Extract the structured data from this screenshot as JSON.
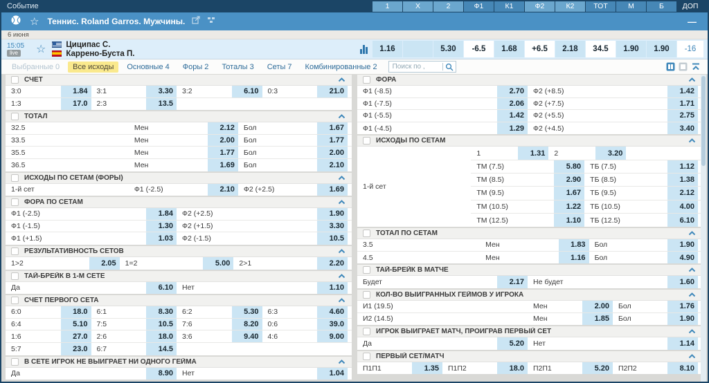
{
  "top_bar": {
    "title": "Событие",
    "columns": [
      {
        "label": "1",
        "style": "light"
      },
      {
        "label": "X",
        "style": "light"
      },
      {
        "label": "2",
        "style": "light"
      },
      {
        "label": "Ф1",
        "style": "dark"
      },
      {
        "label": "К1",
        "style": "dark"
      },
      {
        "label": "Ф2",
        "style": "light"
      },
      {
        "label": "К2",
        "style": "light"
      },
      {
        "label": "ТОТ",
        "style": "dark"
      },
      {
        "label": "М",
        "style": "dark"
      },
      {
        "label": "Б",
        "style": "dark"
      },
      {
        "label": "ДОП",
        "style": "plain"
      }
    ]
  },
  "sport_row": {
    "title": "Теннис. Roland Garros. Мужчины.",
    "minimize": "—"
  },
  "date_row": {
    "date": "6 июня"
  },
  "match": {
    "time": "15:05",
    "live": "live",
    "player1": "Циципас С.",
    "player2": "Каррено-Буста П.",
    "flag1": "greece",
    "flag2": "spain",
    "odds": [
      {
        "v": "1.16",
        "style": "blue"
      },
      {
        "v": "",
        "style": "blue"
      },
      {
        "v": "5.30",
        "style": "blue"
      },
      {
        "v": "-6.5",
        "style": "white"
      },
      {
        "v": "1.68",
        "style": "blue"
      },
      {
        "v": "+6.5",
        "style": "white"
      },
      {
        "v": "2.18",
        "style": "blue"
      },
      {
        "v": "34.5",
        "style": "white"
      },
      {
        "v": "1.90",
        "style": "blue"
      },
      {
        "v": "1.90",
        "style": "blue"
      },
      {
        "v": "-16",
        "style": "link"
      }
    ]
  },
  "filter_bar": {
    "tabs": [
      {
        "label": "Выбранные 0",
        "state": "disabled"
      },
      {
        "label": "Все исходы",
        "state": "active"
      },
      {
        "label": "Основные 4",
        "state": "normal"
      },
      {
        "label": "Форы 2",
        "state": "normal"
      },
      {
        "label": "Тоталы 3",
        "state": "normal"
      },
      {
        "label": "Сеты 7",
        "state": "normal"
      },
      {
        "label": "Комбинированные 2",
        "state": "normal"
      }
    ],
    "search_placeholder": "Поиск по ,"
  },
  "columns": {
    "left": [
      {
        "title": "СЧЕТ",
        "type": "pairs",
        "per_row": 4,
        "rows": [
          [
            [
              "3:0",
              "1.84"
            ],
            [
              "3:1",
              "3.30"
            ],
            [
              "3:2",
              "6.10"
            ],
            [
              "0:3",
              "21.0"
            ]
          ],
          [
            [
              "1:3",
              "17.0"
            ],
            [
              "2:3",
              "13.5"
            ],
            null,
            null
          ]
        ]
      },
      {
        "title": "ТОТАЛ",
        "type": "param",
        "label_w": "36%",
        "rows": [
          {
            "label": "32.5",
            "pairs": [
              [
                "Мен",
                "2.12"
              ],
              [
                "Бол",
                "1.67"
              ]
            ]
          },
          {
            "label": "33.5",
            "pairs": [
              [
                "Мен",
                "2.00"
              ],
              [
                "Бол",
                "1.77"
              ]
            ]
          },
          {
            "label": "35.5",
            "pairs": [
              [
                "Мен",
                "1.77"
              ],
              [
                "Бол",
                "2.00"
              ]
            ]
          },
          {
            "label": "36.5",
            "pairs": [
              [
                "Мен",
                "1.69"
              ],
              [
                "Бол",
                "2.10"
              ]
            ]
          }
        ]
      },
      {
        "title": "ИСХОДЫ ПО СЕТАМ (ФОРЫ)",
        "type": "param",
        "label_w": "36%",
        "rows": [
          {
            "label": "1-й сет",
            "pairs": [
              [
                "Ф1 (-2.5)",
                "2.10"
              ],
              [
                "Ф2 (+2.5)",
                "1.69"
              ]
            ]
          }
        ]
      },
      {
        "title": "ФОРА ПО СЕТАМ",
        "type": "pairs",
        "per_row": 2,
        "rows": [
          [
            [
              "Ф1 (-2.5)",
              "1.84"
            ],
            [
              "Ф2 (+2.5)",
              "1.90"
            ]
          ],
          [
            [
              "Ф1 (-1.5)",
              "1.30"
            ],
            [
              "Ф2 (+1.5)",
              "3.30"
            ]
          ],
          [
            [
              "Ф1 (+1.5)",
              "1.03"
            ],
            [
              "Ф2 (-1.5)",
              "10.5"
            ]
          ]
        ]
      },
      {
        "title": "РЕЗУЛЬТАТИВНОСТЬ СЕТОВ",
        "type": "pairs",
        "per_row": 3,
        "rows": [
          [
            [
              "1>2",
              "2.05"
            ],
            [
              "1=2",
              "5.00"
            ],
            [
              "2>1",
              "2.20"
            ]
          ]
        ]
      },
      {
        "title": "ТАЙ-БРЕЙК В 1-М СЕТЕ",
        "type": "pairs",
        "per_row": 2,
        "rows": [
          [
            [
              "Да",
              "6.10"
            ],
            [
              "Нет",
              "1.10"
            ]
          ]
        ]
      },
      {
        "title": "СЧЕТ ПЕРВОГО СЕТА",
        "type": "pairs",
        "per_row": 4,
        "rows": [
          [
            [
              "6:0",
              "18.0"
            ],
            [
              "6:1",
              "8.30"
            ],
            [
              "6:2",
              "5.30"
            ],
            [
              "6:3",
              "4.60"
            ]
          ],
          [
            [
              "6:4",
              "5.10"
            ],
            [
              "7:5",
              "10.5"
            ],
            [
              "7:6",
              "8.20"
            ],
            [
              "0:6",
              "39.0"
            ]
          ],
          [
            [
              "1:6",
              "27.0"
            ],
            [
              "2:6",
              "18.0"
            ],
            [
              "3:6",
              "9.40"
            ],
            [
              "4:6",
              "9.00"
            ]
          ],
          [
            [
              "5:7",
              "23.0"
            ],
            [
              "6:7",
              "14.5"
            ],
            null,
            null
          ]
        ]
      },
      {
        "title": "В СЕТЕ ИГРОК НЕ ВЫИГРАЕТ НИ ОДНОГО ГЕЙМА",
        "type": "pairs",
        "per_row": 2,
        "rows": [
          [
            [
              "Да",
              "8.90"
            ],
            [
              "Нет",
              "1.04"
            ]
          ]
        ]
      }
    ],
    "right": [
      {
        "title": "ФОРА",
        "type": "pairs",
        "per_row": 2,
        "rows": [
          [
            [
              "Ф1 (-8.5)",
              "2.70"
            ],
            [
              "Ф2 (+8.5)",
              "1.42"
            ]
          ],
          [
            [
              "Ф1 (-7.5)",
              "2.06"
            ],
            [
              "Ф2 (+7.5)",
              "1.71"
            ]
          ],
          [
            [
              "Ф1 (-5.5)",
              "1.42"
            ],
            [
              "Ф2 (+5.5)",
              "2.75"
            ]
          ],
          [
            [
              "Ф1 (-4.5)",
              "1.29"
            ],
            [
              "Ф2 (+4.5)",
              "3.40"
            ]
          ]
        ]
      },
      {
        "title": "ИСХОДЫ ПО СЕТАМ",
        "type": "grouped",
        "group_label": "1-й сет",
        "rows": [
          {
            "short": true,
            "pairs": [
              [
                "1",
                "1.31"
              ],
              [
                "2",
                "3.20"
              ]
            ]
          },
          {
            "short": false,
            "pairs": [
              [
                "ТМ (7.5)",
                "5.80"
              ],
              [
                "ТБ (7.5)",
                "1.12"
              ]
            ]
          },
          {
            "short": false,
            "pairs": [
              [
                "ТМ (8.5)",
                "2.90"
              ],
              [
                "ТБ (8.5)",
                "1.38"
              ]
            ]
          },
          {
            "short": false,
            "pairs": [
              [
                "ТМ (9.5)",
                "1.67"
              ],
              [
                "ТБ (9.5)",
                "2.12"
              ]
            ]
          },
          {
            "short": false,
            "pairs": [
              [
                "ТМ (10.5)",
                "1.22"
              ],
              [
                "ТБ (10.5)",
                "4.00"
              ]
            ]
          },
          {
            "short": false,
            "pairs": [
              [
                "ТМ (12.5)",
                "1.10"
              ],
              [
                "ТБ (12.5)",
                "6.10"
              ]
            ]
          }
        ]
      },
      {
        "title": "ТОТАЛ ПО СЕТАМ",
        "type": "param",
        "label_w": "36%",
        "rows": [
          {
            "label": "3.5",
            "pairs": [
              [
                "Мен",
                "1.83"
              ],
              [
                "Бол",
                "1.90"
              ]
            ]
          },
          {
            "label": "4.5",
            "pairs": [
              [
                "Мен",
                "1.16"
              ],
              [
                "Бол",
                "4.90"
              ]
            ]
          }
        ]
      },
      {
        "title": "ТАЙ-БРЕЙК В МАТЧЕ",
        "type": "pairs",
        "per_row": 2,
        "rows": [
          [
            [
              "Будет",
              "2.17"
            ],
            [
              "Не будет",
              "1.60"
            ]
          ]
        ]
      },
      {
        "title": "КОЛ-ВО ВЫИГРАННЫХ ГЕЙМОВ У ИГРОКА",
        "type": "param",
        "label_w": "50%",
        "rows": [
          {
            "label": "И1 (19.5)",
            "pairs": [
              [
                "Мен",
                "2.00"
              ],
              [
                "Бол",
                "1.76"
              ]
            ]
          },
          {
            "label": "И2 (14.5)",
            "pairs": [
              [
                "Мен",
                "1.85"
              ],
              [
                "Бол",
                "1.90"
              ]
            ]
          }
        ]
      },
      {
        "title": "ИГРОК ВЫИГРАЕТ МАТЧ, ПРОИГРАВ ПЕРВЫЙ СЕТ",
        "type": "pairs",
        "per_row": 2,
        "rows": [
          [
            [
              "Да",
              "5.20"
            ],
            [
              "Нет",
              "1.14"
            ]
          ]
        ]
      },
      {
        "title": "ПЕРВЫЙ СЕТ/МАТЧ",
        "type": "pairs",
        "per_row": 4,
        "rows": [
          [
            [
              "П1П1",
              "1.35"
            ],
            [
              "П1П2",
              "18.0"
            ],
            [
              "П2П1",
              "5.20"
            ],
            [
              "П2П2",
              "8.10"
            ]
          ]
        ]
      }
    ]
  },
  "colors": {
    "header_navy": "#1b4566",
    "sport_blue": "#4a91c5",
    "accent_blue": "#3f88ba",
    "odds_cell_bg": "#cbe5f4",
    "match_row_bg": "#ddeefa",
    "active_tab_bg": "#fae98d",
    "section_header_bg": "#f1f1ef"
  }
}
